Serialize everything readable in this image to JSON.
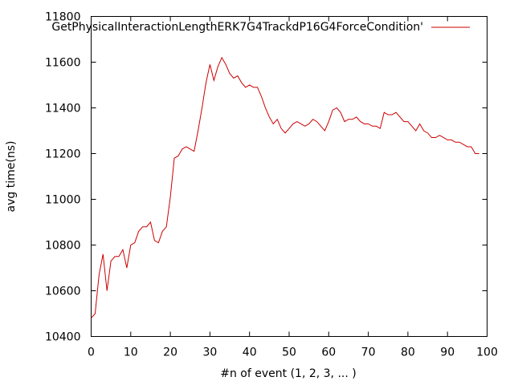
{
  "chart_data": {
    "type": "line",
    "title": "",
    "xlabel": "#n of event (1, 2, 3, ... )",
    "ylabel": "avg time(ns)",
    "xlim": [
      0,
      100
    ],
    "ylim": [
      10400,
      11800
    ],
    "xticks": [
      0,
      10,
      20,
      30,
      40,
      50,
      60,
      70,
      80,
      90,
      100
    ],
    "yticks": [
      10400,
      10600,
      10800,
      11000,
      11200,
      11400,
      11600,
      11800
    ],
    "grid": false,
    "legend_position": "top-right",
    "series": [
      {
        "name": "GetPhysicalInteractionLengthERK7G4TrackdP16G4ForceCondition'",
        "color": "#cc0000",
        "x": [
          0,
          1,
          2,
          3,
          4,
          5,
          6,
          7,
          8,
          9,
          10,
          11,
          12,
          13,
          14,
          15,
          16,
          17,
          18,
          19,
          20,
          21,
          22,
          23,
          24,
          25,
          26,
          27,
          28,
          29,
          30,
          31,
          32,
          33,
          34,
          35,
          36,
          37,
          38,
          39,
          40,
          41,
          42,
          43,
          44,
          45,
          46,
          47,
          48,
          49,
          50,
          51,
          52,
          53,
          54,
          55,
          56,
          57,
          58,
          59,
          60,
          61,
          62,
          63,
          64,
          65,
          66,
          67,
          68,
          69,
          70,
          71,
          72,
          73,
          74,
          75,
          76,
          77,
          78,
          79,
          80,
          81,
          82,
          83,
          84,
          85,
          86,
          87,
          88,
          89,
          90,
          91,
          92,
          93,
          94,
          95,
          96,
          97,
          98
        ],
        "y": [
          10480,
          10500,
          10670,
          10760,
          10600,
          10730,
          10750,
          10750,
          10780,
          10700,
          10800,
          10810,
          10860,
          10880,
          10880,
          10900,
          10820,
          10810,
          10860,
          10880,
          11010,
          11180,
          11190,
          11220,
          11230,
          11220,
          11210,
          11300,
          11400,
          11510,
          11590,
          11520,
          11580,
          11620,
          11590,
          11550,
          11530,
          11540,
          11510,
          11490,
          11500,
          11490,
          11490,
          11450,
          11400,
          11360,
          11330,
          11350,
          11310,
          11290,
          11310,
          11330,
          11340,
          11330,
          11320,
          11330,
          11350,
          11340,
          11320,
          11300,
          11340,
          11390,
          11400,
          11380,
          11340,
          11350,
          11350,
          11360,
          11340,
          11330,
          11330,
          11320,
          11320,
          11310,
          11380,
          11370,
          11370,
          11380,
          11360,
          11340,
          11340,
          11320,
          11300,
          11330,
          11300,
          11290,
          11270,
          11270,
          11280,
          11270,
          11260,
          11260,
          11250,
          11250,
          11240,
          11230,
          11230,
          11200,
          11200
        ]
      }
    ]
  }
}
